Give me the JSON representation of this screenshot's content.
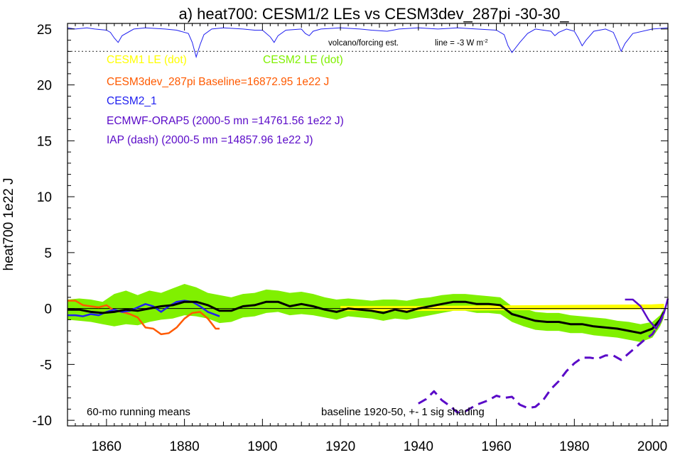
{
  "chart_data": {
    "type": "line",
    "title": "a) heat700: CESM1/2 LEs vs CESM3dev_287pi -30-30_",
    "xlabel": "",
    "ylabel": "heat700 1e22 J",
    "xlim": [
      1850,
      2004
    ],
    "ylim": [
      -10.5,
      25.5
    ],
    "xticks": [
      "1860",
      "1880",
      "1900",
      "1920",
      "1940",
      "1960",
      "1980",
      "2000"
    ],
    "yticks": [
      "25",
      "20",
      "15",
      "10",
      "5",
      "0",
      "-5",
      "-10"
    ],
    "legend": [
      {
        "label": "CESM1 LE (dot)",
        "color": "#ffff00"
      },
      {
        "label": "CESM2 LE (dot)",
        "color": "#80f000"
      },
      {
        "label": "CESM3dev_287pi Baseline=16872.95 1e22 J",
        "color": "#ff5a00"
      },
      {
        "label": "CESM2_1",
        "color": "#2020f0"
      },
      {
        "label": "ECMWF-ORAP5 (2000-5 mn =14761.56 1e22 J)",
        "color": "#5a0ac8"
      },
      {
        "label": "IAP (dash) (2000-5 mn =14857.96 1e22 J)",
        "color": "#5a0ac8"
      }
    ],
    "annotations": {
      "volcano": "volcano/forcing est.",
      "line_note": "line = -3 W m",
      "line_note_sup": "-2",
      "bottom_left": "60-mo running means",
      "bottom_right": "baseline 1920-50, +- 1 sig shading"
    },
    "colors": {
      "cesm1": "#ffff00",
      "cesm2_shade": "#80f000",
      "cesm3dev": "#ff5a00",
      "cesm2_1": "#2020f0",
      "orap5": "#5a0ac8",
      "mean": "#000000",
      "forcing": "#2020f0"
    },
    "series": [
      {
        "name": "CESM3dev_287pi",
        "x": [
          1850,
          1852,
          1854,
          1856,
          1858,
          1860,
          1862,
          1864,
          1866,
          1868,
          1870,
          1872,
          1874,
          1876,
          1878,
          1880,
          1882,
          1884,
          1886,
          1888,
          1889
        ],
        "y": [
          0.7,
          0.7,
          0.3,
          0.2,
          0.1,
          0.3,
          -0.2,
          -0.3,
          -0.5,
          -0.8,
          -1.7,
          -1.8,
          -2.3,
          -2.2,
          -1.7,
          -0.9,
          -0.4,
          -0.3,
          -0.9,
          -1.8,
          -1.8
        ]
      },
      {
        "name": "CESM2_1",
        "x": [
          1850,
          1852,
          1854,
          1856,
          1858,
          1860,
          1862,
          1864,
          1866,
          1868,
          1870,
          1872,
          1874,
          1876,
          1878,
          1880,
          1882,
          1884,
          1886,
          1889
        ],
        "y": [
          -0.6,
          -0.6,
          -0.7,
          -0.5,
          -0.6,
          -0.3,
          -0.1,
          -0.3,
          -0.2,
          0.1,
          0.4,
          0.2,
          -0.3,
          0.2,
          0.6,
          0.7,
          0.6,
          0.2,
          -0.3,
          -0.7
        ]
      },
      {
        "name": "CESM2 LE mean",
        "x": [
          1850,
          1853,
          1856,
          1859,
          1862,
          1865,
          1868,
          1871,
          1874,
          1877,
          1880,
          1883,
          1886,
          1889,
          1892,
          1895,
          1898,
          1901,
          1904,
          1907,
          1910,
          1913,
          1916,
          1919,
          1922,
          1925,
          1928,
          1931,
          1934,
          1937,
          1940,
          1943,
          1946,
          1949,
          1952,
          1955,
          1958,
          1961,
          1964,
          1967,
          1970,
          1973,
          1976,
          1979,
          1982,
          1985,
          1988,
          1991,
          1994,
          1997,
          2000,
          2002,
          2003
        ],
        "y": [
          -0.1,
          -0.1,
          -0.3,
          -0.4,
          -0.3,
          -0.1,
          -0.2,
          0.0,
          0.2,
          0.3,
          0.6,
          0.6,
          0.3,
          -0.2,
          -0.2,
          0.2,
          0.3,
          0.6,
          0.6,
          0.2,
          0.4,
          0.2,
          -0.1,
          -0.3,
          0.0,
          -0.1,
          -0.2,
          -0.4,
          -0.1,
          -0.3,
          0.0,
          0.2,
          0.4,
          0.6,
          0.6,
          0.4,
          0.4,
          0.3,
          -0.5,
          -0.8,
          -1.1,
          -1.2,
          -1.2,
          -1.4,
          -1.4,
          -1.6,
          -1.7,
          -1.8,
          -2.0,
          -2.2,
          -1.8,
          -1.0,
          -0.3
        ]
      },
      {
        "name": "CESM1 LE",
        "x": [
          1920,
          1940,
          1960,
          1980,
          2000,
          2003
        ],
        "y": [
          0.0,
          0.0,
          0.05,
          0.1,
          0.15,
          0.2
        ]
      },
      {
        "name": "ECMWF-ORAP5",
        "x": [
          1993,
          1995,
          1997,
          1999,
          2001,
          2003,
          2004
        ],
        "y": [
          0.8,
          0.8,
          0.2,
          -1.0,
          -1.8,
          -0.4,
          0.9
        ]
      },
      {
        "name": "IAP",
        "x": [
          1940,
          1942,
          1944,
          1946,
          1948,
          1950,
          1952,
          1955,
          1958,
          1960,
          1962,
          1964,
          1966,
          1968,
          1970,
          1972,
          1974,
          1976,
          1978,
          1980,
          1982,
          1984,
          1986,
          1988,
          1990,
          1992,
          1994,
          1996,
          1998,
          2000,
          2002,
          2003
        ],
        "y": [
          -8.5,
          -8.1,
          -7.4,
          -8.2,
          -8.7,
          -9.3,
          -9.2,
          -8.6,
          -8.2,
          -7.8,
          -8.0,
          -7.9,
          -8.6,
          -8.9,
          -8.8,
          -8.2,
          -7.2,
          -6.5,
          -5.6,
          -4.9,
          -4.4,
          -4.4,
          -4.5,
          -4.2,
          -4.2,
          -4.6,
          -4.0,
          -3.4,
          -2.8,
          -2.3,
          -1.2,
          -0.4
        ]
      },
      {
        "name": "CESM2 LE +-1 sigma",
        "x": [
          1850,
          1853,
          1856,
          1859,
          1862,
          1865,
          1868,
          1871,
          1874,
          1877,
          1880,
          1883,
          1886,
          1889,
          1892,
          1895,
          1898,
          1901,
          1904,
          1907,
          1910,
          1913,
          1916,
          1919,
          1922,
          1925,
          1928,
          1931,
          1934,
          1937,
          1940,
          1943,
          1946,
          1949,
          1952,
          1955,
          1958,
          1961,
          1964,
          1967,
          1970,
          1973,
          1976,
          1979,
          1982,
          1985,
          1988,
          1991,
          1994,
          1997,
          2000,
          2002,
          2003
        ],
        "upper": [
          0.8,
          0.9,
          0.8,
          0.6,
          1.3,
          1.6,
          1.2,
          1.6,
          1.4,
          1.8,
          2.2,
          1.9,
          1.4,
          1.2,
          1.0,
          1.3,
          1.4,
          1.7,
          1.6,
          1.4,
          1.5,
          1.3,
          1.0,
          0.8,
          0.9,
          0.8,
          0.7,
          0.8,
          0.8,
          0.7,
          0.9,
          1.0,
          1.2,
          1.3,
          1.3,
          1.2,
          1.1,
          1.0,
          0.2,
          0.0,
          -0.3,
          -0.4,
          -0.4,
          -0.6,
          -0.7,
          -0.8,
          -0.9,
          -1.1,
          -1.2,
          -1.4,
          -1.2,
          -0.6,
          0.0
        ],
        "lower": [
          -1.0,
          -1.1,
          -1.2,
          -1.4,
          -1.6,
          -1.4,
          -1.5,
          -1.2,
          -1.0,
          -0.9,
          -0.6,
          -0.7,
          -0.9,
          -1.3,
          -1.2,
          -0.8,
          -0.7,
          -0.4,
          -0.3,
          -0.6,
          -0.5,
          -0.6,
          -0.8,
          -1.0,
          -0.7,
          -0.8,
          -0.9,
          -1.1,
          -0.9,
          -1.0,
          -0.8,
          -0.6,
          -0.4,
          -0.2,
          -0.2,
          -0.4,
          -0.4,
          -0.5,
          -1.2,
          -1.6,
          -1.9,
          -2.0,
          -2.0,
          -2.2,
          -2.2,
          -2.4,
          -2.5,
          -2.6,
          -2.8,
          -3.0,
          -2.6,
          -1.6,
          -0.8
        ]
      },
      {
        "name": "volcano/forcing est.",
        "x": [
          1850,
          1852,
          1855,
          1857,
          1860,
          1861,
          1862,
          1863,
          1864,
          1867,
          1870,
          1875,
          1878,
          1881,
          1882,
          1883,
          1884,
          1885,
          1887,
          1890,
          1895,
          1898,
          1900,
          1902,
          1903,
          1904,
          1906,
          1910,
          1911,
          1912,
          1913,
          1915,
          1920,
          1925,
          1928,
          1932,
          1935,
          1940,
          1945,
          1950,
          1955,
          1960,
          1962,
          1963,
          1964,
          1966,
          1968,
          1970,
          1974,
          1975,
          1976,
          1978,
          1980,
          1981,
          1982,
          1983,
          1985,
          1988,
          1990,
          1991,
          1992,
          1993,
          1995,
          2000,
          2004
        ],
        "y": [
          25.1,
          25.0,
          25.1,
          25.0,
          24.9,
          24.7,
          24.2,
          23.8,
          24.4,
          25.0,
          25.1,
          25.0,
          24.9,
          24.6,
          23.8,
          22.5,
          23.6,
          24.5,
          25.0,
          25.1,
          25.0,
          24.9,
          24.9,
          24.3,
          23.8,
          24.4,
          24.9,
          25.0,
          24.6,
          24.4,
          24.8,
          25.0,
          25.1,
          25.0,
          24.9,
          24.8,
          25.0,
          25.1,
          25.0,
          25.1,
          25.0,
          24.9,
          24.5,
          23.5,
          22.9,
          23.8,
          24.6,
          25.0,
          24.8,
          24.4,
          24.7,
          25.0,
          24.8,
          24.2,
          23.5,
          24.0,
          24.8,
          25.0,
          24.7,
          23.9,
          23.0,
          23.7,
          24.6,
          25.0,
          25.1
        ]
      }
    ],
    "reference_lines": [
      {
        "name": "volcano line",
        "y": 23,
        "style": "dotted"
      }
    ]
  }
}
